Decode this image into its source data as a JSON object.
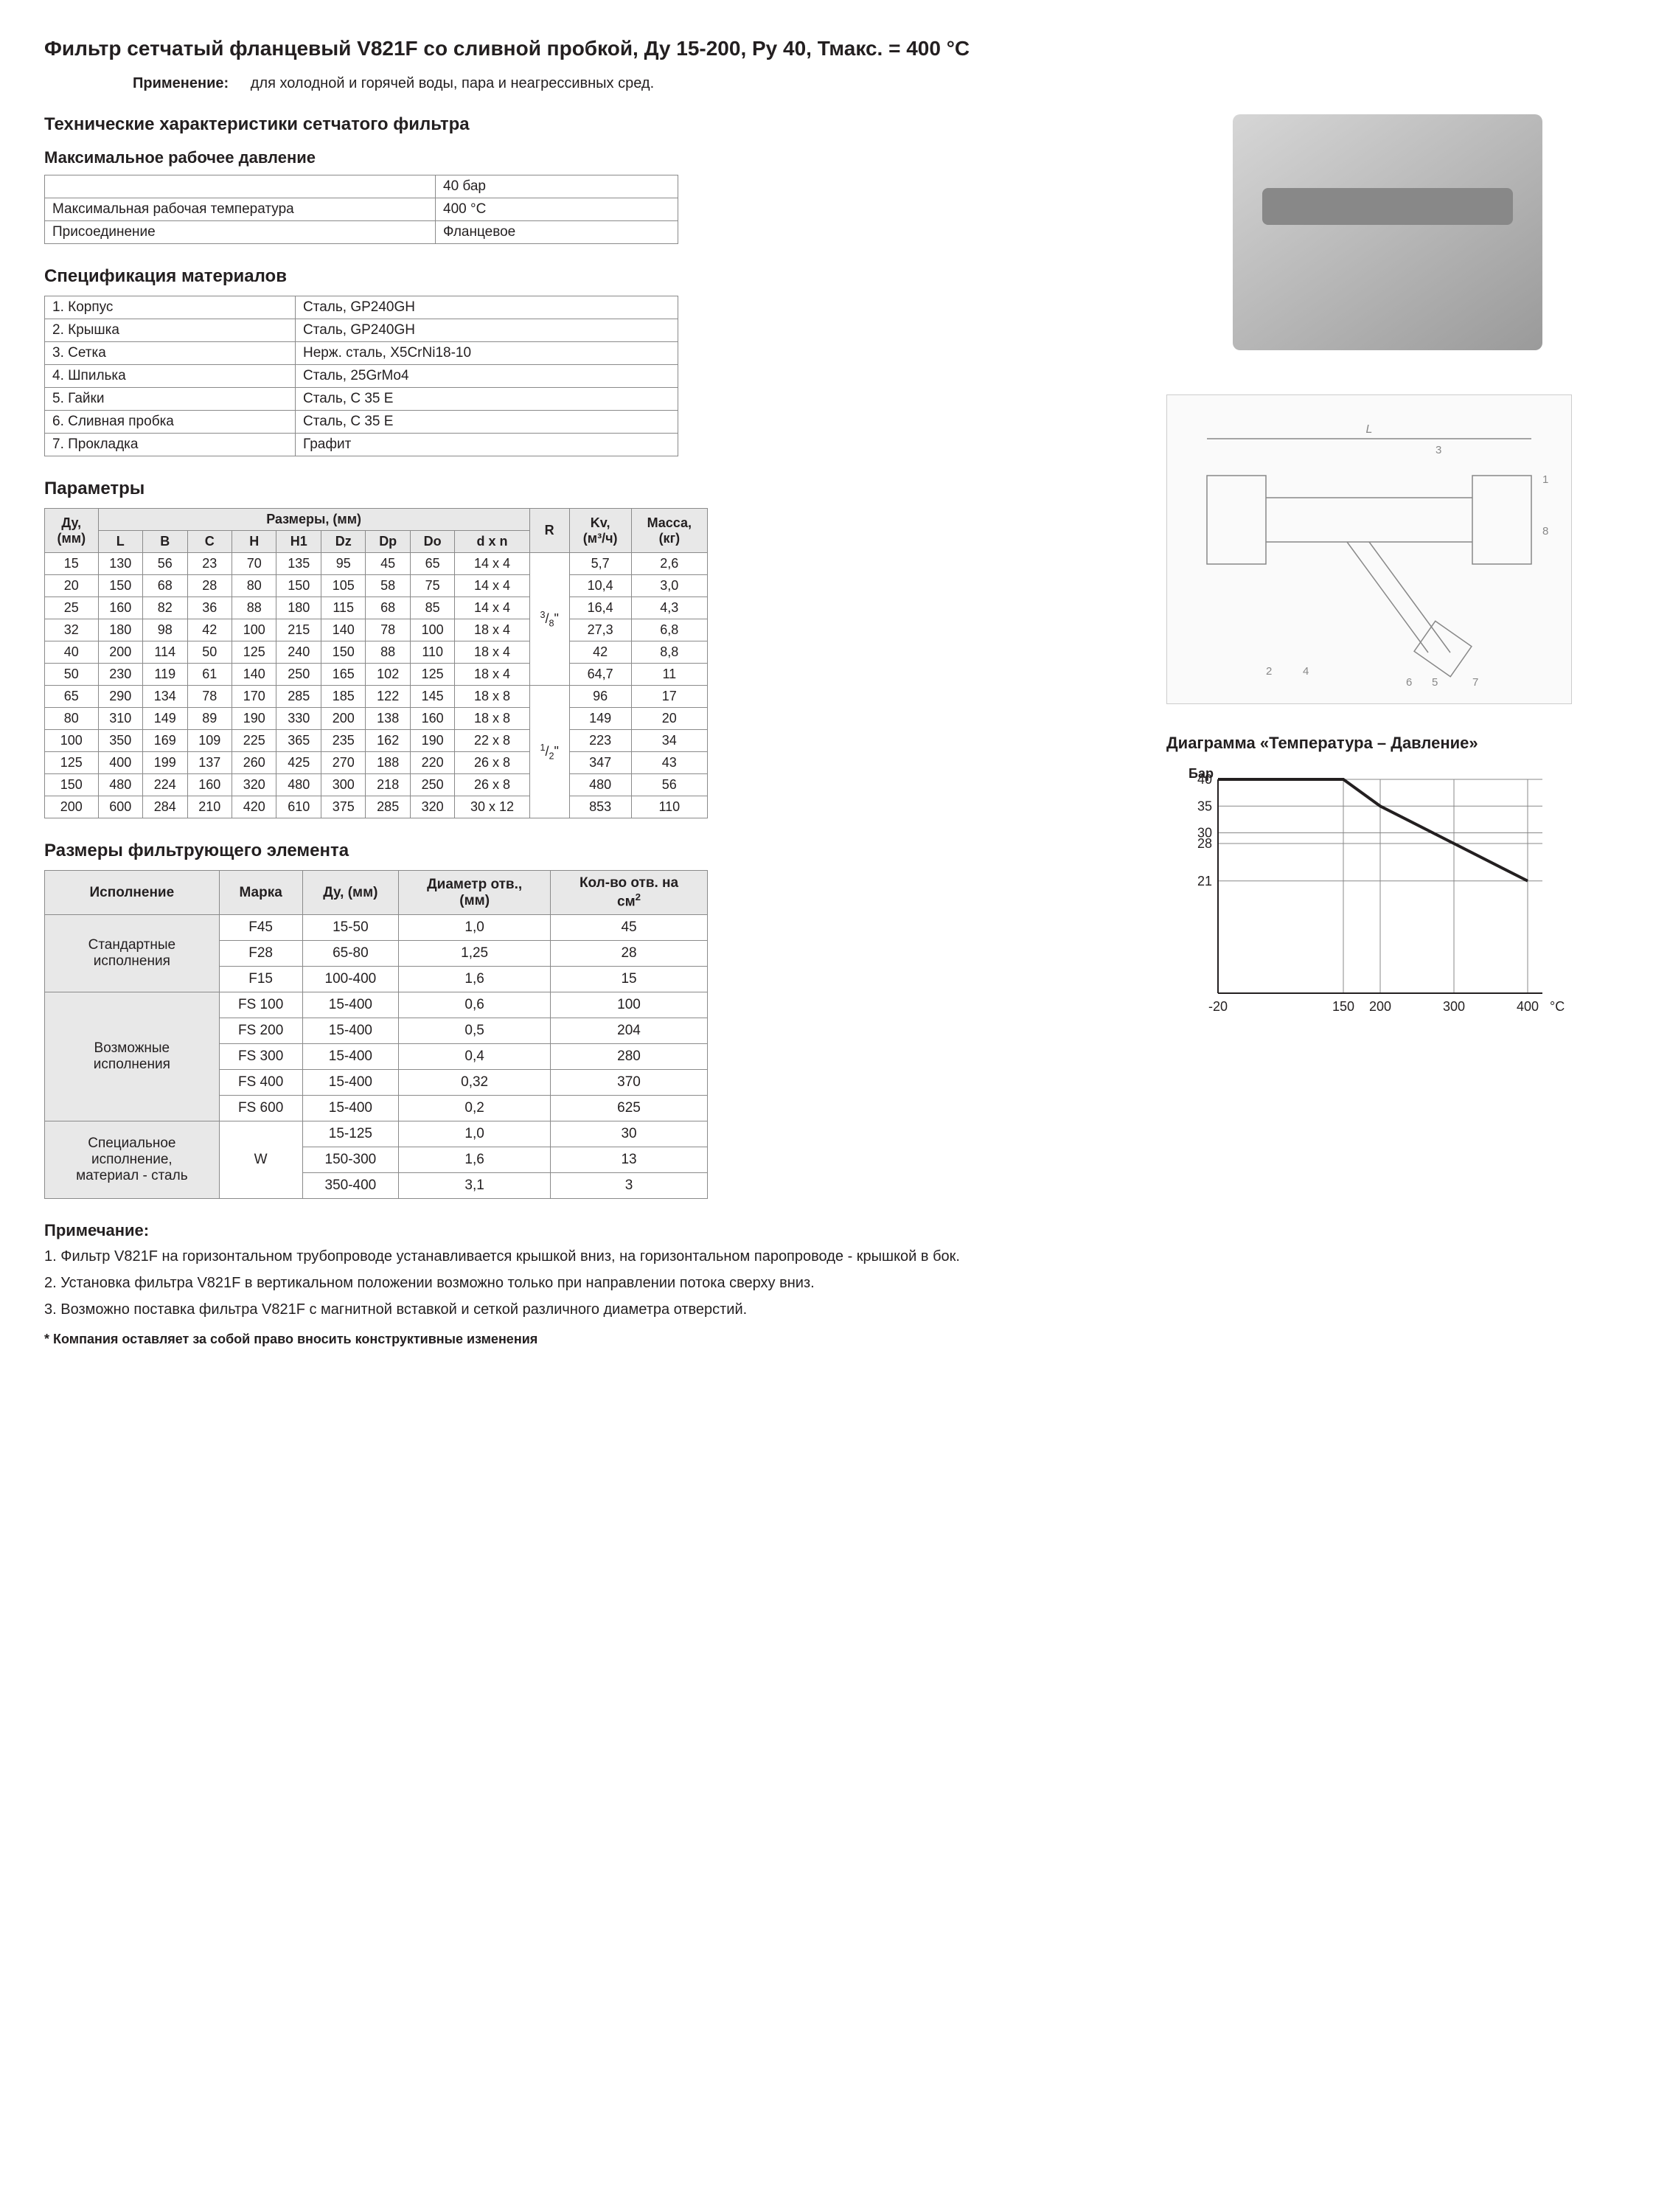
{
  "title": "Фильтр сетчатый фланцевый V821F со сливной пробкой, Ду 15-200, Ру 40, Тмакс. = 400 °С",
  "application_label": "Применение:",
  "application_text": "для холодной и горячей воды, пара и неагрессивных сред.",
  "tech_char_header": "Технические характеристики сетчатого фильтра",
  "pressure_header": "Максимальное рабочее давление",
  "pressure_table": {
    "rows": [
      [
        "",
        "40 бар"
      ],
      [
        "Максимальная рабочая температура",
        "400 °С"
      ],
      [
        "Присоединение",
        "Фланцевое"
      ]
    ]
  },
  "materials_header": "Спецификация материалов",
  "materials_table": {
    "rows": [
      [
        "1. Корпус",
        "Сталь, GP240GH"
      ],
      [
        "2. Крышка",
        "Сталь, GP240GH"
      ],
      [
        "3. Сетка",
        "Нерж. сталь, X5CrNi18-10"
      ],
      [
        "4. Шпилька",
        "Сталь, 25GrMo4"
      ],
      [
        "5. Гайки",
        "Сталь, C 35 E"
      ],
      [
        "6. Сливная пробка",
        "Сталь, C 35 E"
      ],
      [
        "7. Прокладка",
        "Графит"
      ]
    ]
  },
  "params_header": "Параметры",
  "params_table": {
    "header_group": "Размеры, (мм)",
    "headers": [
      "Ду, (мм)",
      "L",
      "B",
      "C",
      "H",
      "H1",
      "Dz",
      "Dp",
      "Do",
      "d x n",
      "R",
      "Kv, (м³/ч)",
      "Масса, (кг)"
    ],
    "r_group1": "³/₈\"",
    "r_group2": "¹/₂\"",
    "rows": [
      [
        "15",
        "130",
        "56",
        "23",
        "70",
        "135",
        "95",
        "45",
        "65",
        "14 x 4",
        "5,7",
        "2,6"
      ],
      [
        "20",
        "150",
        "68",
        "28",
        "80",
        "150",
        "105",
        "58",
        "75",
        "14 x 4",
        "10,4",
        "3,0"
      ],
      [
        "25",
        "160",
        "82",
        "36",
        "88",
        "180",
        "115",
        "68",
        "85",
        "14 x 4",
        "16,4",
        "4,3"
      ],
      [
        "32",
        "180",
        "98",
        "42",
        "100",
        "215",
        "140",
        "78",
        "100",
        "18 x 4",
        "27,3",
        "6,8"
      ],
      [
        "40",
        "200",
        "114",
        "50",
        "125",
        "240",
        "150",
        "88",
        "110",
        "18 x 4",
        "42",
        "8,8"
      ],
      [
        "50",
        "230",
        "119",
        "61",
        "140",
        "250",
        "165",
        "102",
        "125",
        "18 x 4",
        "64,7",
        "11"
      ],
      [
        "65",
        "290",
        "134",
        "78",
        "170",
        "285",
        "185",
        "122",
        "145",
        "18 x 8",
        "96",
        "17"
      ],
      [
        "80",
        "310",
        "149",
        "89",
        "190",
        "330",
        "200",
        "138",
        "160",
        "18 x 8",
        "149",
        "20"
      ],
      [
        "100",
        "350",
        "169",
        "109",
        "225",
        "365",
        "235",
        "162",
        "190",
        "22 x 8",
        "223",
        "34"
      ],
      [
        "125",
        "400",
        "199",
        "137",
        "260",
        "425",
        "270",
        "188",
        "220",
        "26 x 8",
        "347",
        "43"
      ],
      [
        "150",
        "480",
        "224",
        "160",
        "320",
        "480",
        "300",
        "218",
        "250",
        "26 x 8",
        "480",
        "56"
      ],
      [
        "200",
        "600",
        "284",
        "210",
        "420",
        "610",
        "375",
        "285",
        "320",
        "30 x 12",
        "853",
        "110"
      ]
    ]
  },
  "filter_dims_header": "Размеры фильтрующего элемента",
  "filter_table": {
    "headers": [
      "Исполнение",
      "Марка",
      "Ду, (мм)",
      "Диаметр отв., (мм)",
      "Кол-во отв. на см²"
    ],
    "group1_label": "Стандартные исполнения",
    "group1_rows": [
      [
        "F45",
        "15-50",
        "1,0",
        "45"
      ],
      [
        "F28",
        "65-80",
        "1,25",
        "28"
      ],
      [
        "F15",
        "100-400",
        "1,6",
        "15"
      ]
    ],
    "group2_label": "Возможные исполнения",
    "group2_rows": [
      [
        "FS 100",
        "15-400",
        "0,6",
        "100"
      ],
      [
        "FS 200",
        "15-400",
        "0,5",
        "204"
      ],
      [
        "FS 300",
        "15-400",
        "0,4",
        "280"
      ],
      [
        "FS 400",
        "15-400",
        "0,32",
        "370"
      ],
      [
        "FS 600",
        "15-400",
        "0,2",
        "625"
      ]
    ],
    "group3_label": "Специальное исполнение, материал - сталь",
    "group3_marka": "W",
    "group3_rows": [
      [
        "15-125",
        "1,0",
        "30"
      ],
      [
        "150-300",
        "1,6",
        "13"
      ],
      [
        "350-400",
        "3,1",
        "3"
      ]
    ]
  },
  "notes_header": "Примечание:",
  "notes": [
    "1. Фильтр V821F на горизонтальном трубопроводе устанавливается крышкой вниз, на горизонтальном паропроводе - крышкой в бок.",
    "2. Установка фильтра V821F в вертикальном положении возможно только при направлении потока сверху вниз.",
    "3. Возможно поставка фильтра V821F с  магнитной вставкой и сеткой различного диаметра отверстий."
  ],
  "disclaimer": "* Компания оставляет за собой право вносить конструктивные изменения",
  "chart": {
    "title": "Диаграмма «Температура – Давление»",
    "y_label": "Бар",
    "x_label": "°С",
    "y_ticks": [
      40,
      35,
      30,
      28,
      21
    ],
    "x_ticks": [
      -20,
      150,
      200,
      300,
      400
    ],
    "y_max": 40,
    "y_min": 0,
    "x_min": -20,
    "x_max": 420,
    "line_points": [
      [
        -20,
        40
      ],
      [
        150,
        40
      ],
      [
        200,
        35
      ],
      [
        300,
        28
      ],
      [
        400,
        21
      ]
    ],
    "line_color": "#231f20",
    "line_width": 4,
    "grid_color": "#888888",
    "axis_color": "#231f20",
    "bg": "#ffffff",
    "font_size": 18
  }
}
